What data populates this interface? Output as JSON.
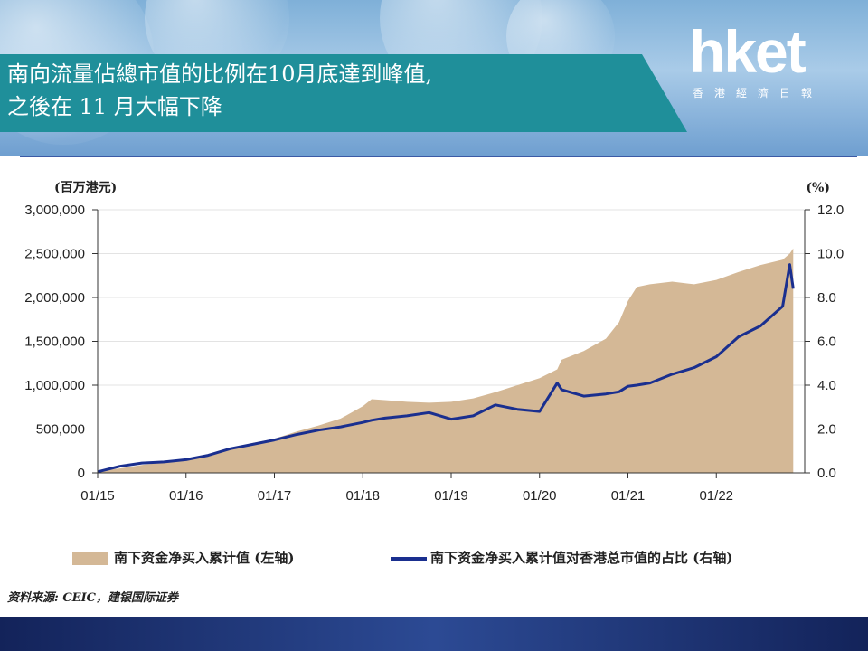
{
  "header": {
    "title_line1": "南向流量佔總市值的比例在10月底達到峰值,",
    "title_line2": "之後在 11 月大幅下降",
    "logo": "hket",
    "logo_sub": "香港經濟日報"
  },
  "colors": {
    "area": "#d4b896",
    "line": "#1a2f8f",
    "band": "#1f8f9a"
  },
  "chart_data": {
    "type": "area",
    "yaxis_left_unit": "(百万港元)",
    "yaxis_right_unit": "(%)",
    "ylim_left": [
      0,
      3000000
    ],
    "ylim_right": [
      0,
      12
    ],
    "yticks_left": [
      "0",
      "500,000",
      "1,000,000",
      "1,500,000",
      "2,000,000",
      "2,500,000",
      "3,000,000"
    ],
    "yticks_right": [
      "0.0",
      "2.0",
      "4.0",
      "6.0",
      "8.0",
      "10.0",
      "12.0"
    ],
    "xticks": [
      "01/15",
      "01/16",
      "01/17",
      "01/18",
      "01/19",
      "01/20",
      "01/21",
      "01/22"
    ],
    "grid": true,
    "legend_position": "bottom",
    "x": [
      2015.0,
      2015.25,
      2015.5,
      2015.75,
      2016.0,
      2016.25,
      2016.5,
      2016.75,
      2017.0,
      2017.25,
      2017.5,
      2017.75,
      2018.0,
      2018.1,
      2018.25,
      2018.5,
      2018.75,
      2019.0,
      2019.25,
      2019.5,
      2019.75,
      2020.0,
      2020.2,
      2020.25,
      2020.5,
      2020.75,
      2020.9,
      2021.0,
      2021.1,
      2021.25,
      2021.5,
      2021.75,
      2022.0,
      2022.25,
      2022.5,
      2022.75,
      2022.83,
      2022.87
    ],
    "series": [
      {
        "name": "南下资金净买入累计值 (左轴)",
        "axis": "left",
        "values": [
          20000,
          50000,
          90000,
          120000,
          140000,
          210000,
          280000,
          340000,
          390000,
          470000,
          540000,
          620000,
          760000,
          840000,
          830000,
          810000,
          800000,
          810000,
          850000,
          920000,
          1000000,
          1080000,
          1180000,
          1290000,
          1390000,
          1530000,
          1720000,
          1960000,
          2120000,
          2150000,
          2180000,
          2150000,
          2200000,
          2290000,
          2370000,
          2430000,
          2500000,
          2560000
        ]
      },
      {
        "name": "南下资金净买入累计值对香港总市值的占比 (右轴)",
        "axis": "right",
        "values": [
          0.05,
          0.3,
          0.45,
          0.5,
          0.6,
          0.8,
          1.1,
          1.3,
          1.5,
          1.75,
          1.95,
          2.1,
          2.3,
          2.4,
          2.5,
          2.6,
          2.75,
          2.45,
          2.6,
          3.1,
          2.9,
          2.8,
          4.1,
          3.8,
          3.5,
          3.6,
          3.7,
          3.95,
          4.0,
          4.1,
          4.5,
          4.8,
          5.3,
          6.2,
          6.7,
          7.6,
          9.5,
          8.4
        ]
      }
    ]
  },
  "legend": {
    "area_label": "南下资金净买入累计值 (左轴)",
    "line_label": "南下资金净买入累计值对香港总市值的占比 (右轴)"
  },
  "source": "资料来源: CEIC，建银国际证券"
}
